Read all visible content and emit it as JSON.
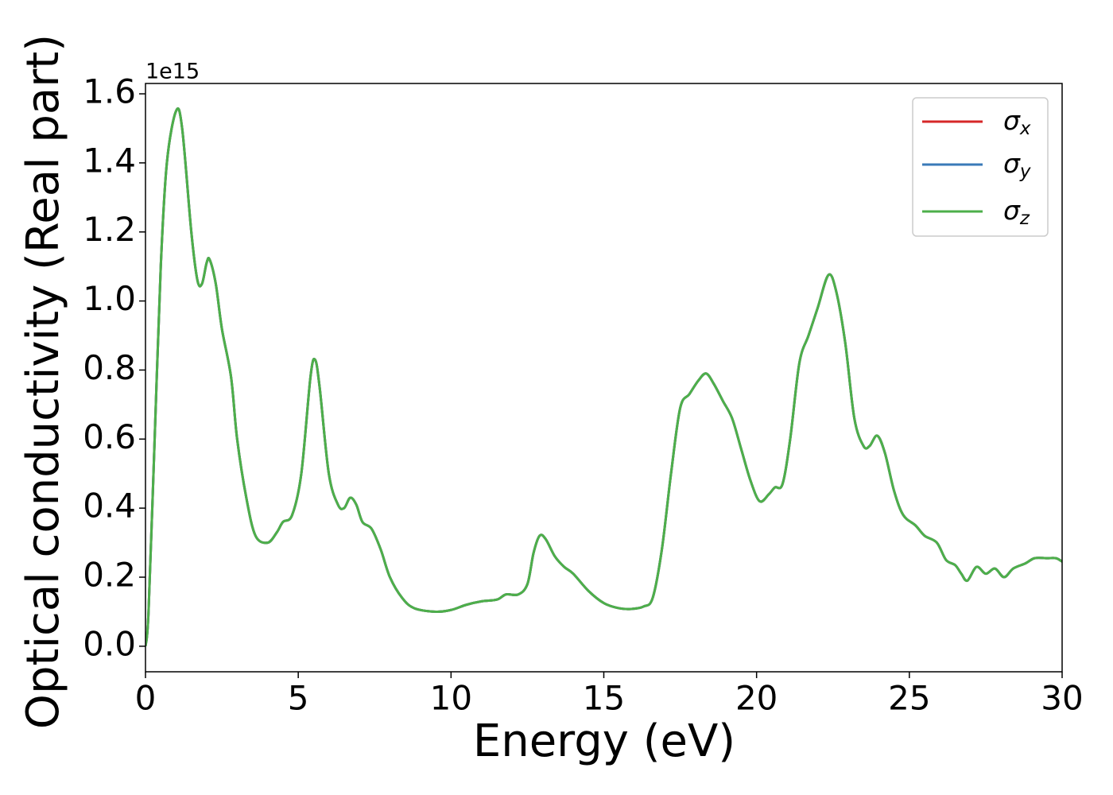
{
  "chart_data": {
    "type": "line",
    "xlabel": "Energy (eV)",
    "ylabel": "Optical conductivity (Real part)",
    "offset_label": "1e15",
    "legend": "upper right",
    "x": [
      0,
      0.1,
      0.3,
      0.5,
      0.7,
      1.0,
      1.2,
      1.5,
      1.7,
      1.85,
      2.0,
      2.1,
      2.3,
      2.5,
      2.8,
      3.0,
      3.3,
      3.6,
      4.0,
      4.3,
      4.5,
      4.8,
      5.1,
      5.4,
      5.55,
      5.7,
      6.0,
      6.3,
      6.5,
      6.7,
      6.9,
      7.1,
      7.4,
      7.7,
      8.0,
      8.4,
      8.8,
      9.5,
      10.0,
      10.5,
      11.0,
      11.5,
      11.8,
      12.2,
      12.5,
      12.7,
      12.9,
      13.1,
      13.4,
      13.7,
      14.0,
      14.5,
      15.0,
      15.5,
      15.9,
      16.3,
      16.6,
      16.9,
      17.2,
      17.5,
      17.8,
      18.1,
      18.35,
      18.6,
      18.9,
      19.2,
      19.5,
      19.8,
      20.1,
      20.4,
      20.6,
      20.85,
      21.1,
      21.4,
      21.7,
      22.0,
      22.35,
      22.6,
      22.9,
      23.2,
      23.5,
      23.7,
      23.95,
      24.2,
      24.5,
      24.8,
      25.2,
      25.5,
      25.9,
      26.2,
      26.5,
      26.7,
      26.9,
      27.2,
      27.5,
      27.8,
      28.1,
      28.4,
      28.8,
      29.1,
      29.5,
      29.8,
      30.0
    ],
    "series": [
      {
        "name": "σx",
        "color": "#d62728",
        "values": [
          0.0,
          0.1,
          0.6,
          1.1,
          1.4,
          1.55,
          1.5,
          1.2,
          1.06,
          1.05,
          1.11,
          1.12,
          1.05,
          0.92,
          0.78,
          0.6,
          0.43,
          0.32,
          0.3,
          0.33,
          0.36,
          0.38,
          0.5,
          0.78,
          0.83,
          0.75,
          0.5,
          0.41,
          0.4,
          0.43,
          0.41,
          0.36,
          0.34,
          0.28,
          0.2,
          0.14,
          0.11,
          0.1,
          0.105,
          0.12,
          0.13,
          0.135,
          0.15,
          0.15,
          0.18,
          0.27,
          0.32,
          0.31,
          0.26,
          0.23,
          0.21,
          0.16,
          0.125,
          0.11,
          0.108,
          0.115,
          0.14,
          0.28,
          0.5,
          0.69,
          0.73,
          0.77,
          0.79,
          0.76,
          0.71,
          0.66,
          0.57,
          0.48,
          0.42,
          0.44,
          0.46,
          0.47,
          0.6,
          0.82,
          0.9,
          0.98,
          1.075,
          1.03,
          0.88,
          0.66,
          0.58,
          0.58,
          0.61,
          0.56,
          0.45,
          0.38,
          0.35,
          0.32,
          0.3,
          0.25,
          0.235,
          0.21,
          0.19,
          0.23,
          0.21,
          0.225,
          0.2,
          0.225,
          0.24,
          0.255,
          0.255,
          0.255,
          0.245
        ]
      },
      {
        "name": "σy",
        "color": "#3a7ab8",
        "values": [
          0.0,
          0.1,
          0.6,
          1.1,
          1.4,
          1.55,
          1.5,
          1.2,
          1.06,
          1.05,
          1.11,
          1.12,
          1.05,
          0.92,
          0.78,
          0.6,
          0.43,
          0.32,
          0.3,
          0.33,
          0.36,
          0.38,
          0.5,
          0.78,
          0.83,
          0.75,
          0.5,
          0.41,
          0.4,
          0.43,
          0.41,
          0.36,
          0.34,
          0.28,
          0.2,
          0.14,
          0.11,
          0.1,
          0.105,
          0.12,
          0.13,
          0.135,
          0.15,
          0.15,
          0.18,
          0.27,
          0.32,
          0.31,
          0.26,
          0.23,
          0.21,
          0.16,
          0.125,
          0.11,
          0.108,
          0.115,
          0.14,
          0.28,
          0.5,
          0.69,
          0.73,
          0.77,
          0.79,
          0.76,
          0.71,
          0.66,
          0.57,
          0.48,
          0.42,
          0.44,
          0.46,
          0.47,
          0.6,
          0.82,
          0.9,
          0.98,
          1.075,
          1.03,
          0.88,
          0.66,
          0.58,
          0.58,
          0.61,
          0.56,
          0.45,
          0.38,
          0.35,
          0.32,
          0.3,
          0.25,
          0.235,
          0.21,
          0.19,
          0.23,
          0.21,
          0.225,
          0.2,
          0.225,
          0.24,
          0.255,
          0.255,
          0.255,
          0.245
        ]
      },
      {
        "name": "σz",
        "color": "#4daf4a",
        "values": [
          0.0,
          0.1,
          0.6,
          1.1,
          1.4,
          1.55,
          1.5,
          1.2,
          1.06,
          1.05,
          1.11,
          1.12,
          1.05,
          0.92,
          0.78,
          0.6,
          0.43,
          0.32,
          0.3,
          0.33,
          0.36,
          0.38,
          0.5,
          0.78,
          0.83,
          0.75,
          0.5,
          0.41,
          0.4,
          0.43,
          0.41,
          0.36,
          0.34,
          0.28,
          0.2,
          0.14,
          0.11,
          0.1,
          0.105,
          0.12,
          0.13,
          0.135,
          0.15,
          0.15,
          0.18,
          0.27,
          0.32,
          0.31,
          0.26,
          0.23,
          0.21,
          0.16,
          0.125,
          0.11,
          0.108,
          0.115,
          0.14,
          0.28,
          0.5,
          0.69,
          0.73,
          0.77,
          0.79,
          0.76,
          0.71,
          0.66,
          0.57,
          0.48,
          0.42,
          0.44,
          0.46,
          0.47,
          0.6,
          0.82,
          0.9,
          0.98,
          1.075,
          1.03,
          0.88,
          0.66,
          0.58,
          0.58,
          0.61,
          0.56,
          0.45,
          0.38,
          0.35,
          0.32,
          0.3,
          0.25,
          0.235,
          0.21,
          0.19,
          0.23,
          0.21,
          0.225,
          0.2,
          0.225,
          0.24,
          0.255,
          0.255,
          0.255,
          0.245
        ]
      }
    ],
    "xlim": [
      0,
      30
    ],
    "xticks": [
      0,
      5,
      10,
      15,
      20,
      25,
      30
    ],
    "ylim": [
      -0.074,
      1.63
    ],
    "yticks": [
      {
        "value": 0,
        "label": "0.0"
      },
      0.2,
      0.4,
      0.6,
      0.8,
      {
        "value": 1,
        "label": "1.0"
      },
      1.2,
      1.4,
      1.6
    ],
    "grid": false
  }
}
